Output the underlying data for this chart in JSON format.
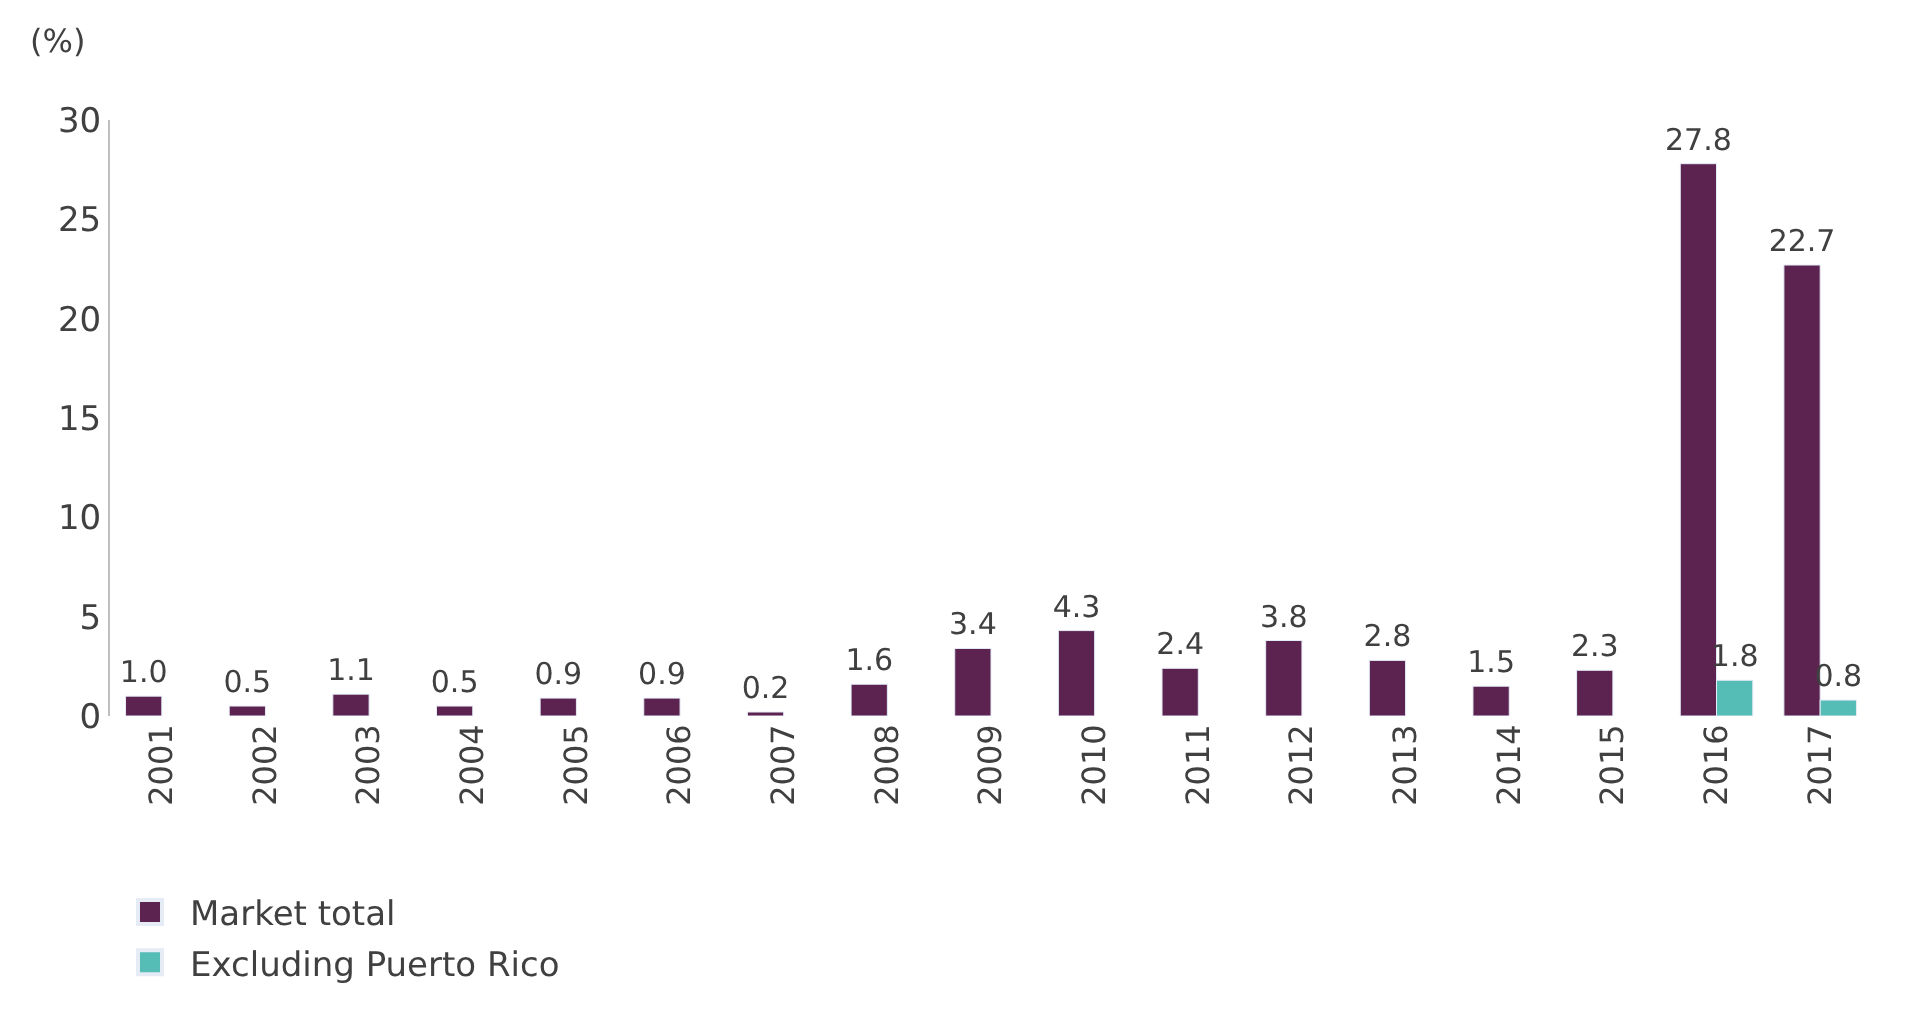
{
  "chart_data": {
    "type": "bar",
    "ylabel": "(%)",
    "categories": [
      "2001",
      "2002",
      "2003",
      "2004",
      "2005",
      "2006",
      "2007",
      "2008",
      "2009",
      "2010",
      "2011",
      "2012",
      "2013",
      "2014",
      "2015",
      "2016",
      "2017"
    ],
    "series": [
      {
        "name": "Market total",
        "color": "#5c2350",
        "values": [
          1.0,
          0.5,
          1.1,
          0.5,
          0.9,
          0.9,
          0.2,
          1.6,
          3.4,
          4.3,
          2.4,
          3.8,
          2.8,
          1.5,
          2.3,
          27.8,
          22.7
        ],
        "value_labels": [
          "1.0",
          "0.5",
          "1.1",
          "0.5",
          "0.9",
          "0.9",
          "0.2",
          "1.6",
          "3.4",
          "4.3",
          "2.4",
          "3.8",
          "2.8",
          "1.5",
          "2.3",
          "27.8",
          "22.7"
        ]
      },
      {
        "name": "Excluding Puerto Rico",
        "color": "#55bdb5",
        "values": [
          null,
          null,
          null,
          null,
          null,
          null,
          null,
          null,
          null,
          null,
          null,
          null,
          null,
          null,
          null,
          1.8,
          0.8
        ],
        "value_labels": [
          null,
          null,
          null,
          null,
          null,
          null,
          null,
          null,
          null,
          null,
          null,
          null,
          null,
          null,
          null,
          "1.8",
          "0.8"
        ]
      }
    ],
    "ylim": [
      0,
      30
    ],
    "yticks": [
      0,
      5,
      10,
      15,
      20,
      25,
      30
    ],
    "legend": "bottom left"
  }
}
